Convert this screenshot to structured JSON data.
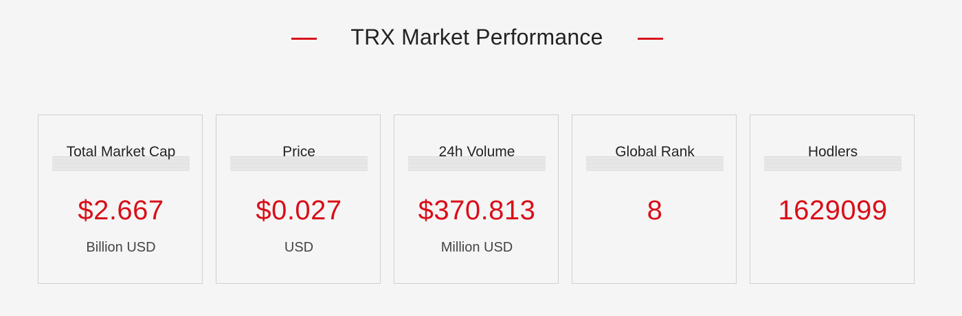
{
  "header": {
    "title": "TRX Market Performance",
    "accent_color": "#d90e18"
  },
  "cards": [
    {
      "label": "Total Market Cap",
      "value": "$2.667",
      "unit": "Billion USD"
    },
    {
      "label": "Price",
      "value": "$0.027",
      "unit": "USD"
    },
    {
      "label": "24h Volume",
      "value": "$370.813",
      "unit": "Million USD"
    },
    {
      "label": "Global Rank",
      "value": "8",
      "unit": ""
    },
    {
      "label": "Hodlers",
      "value": "1629099",
      "unit": ""
    }
  ]
}
